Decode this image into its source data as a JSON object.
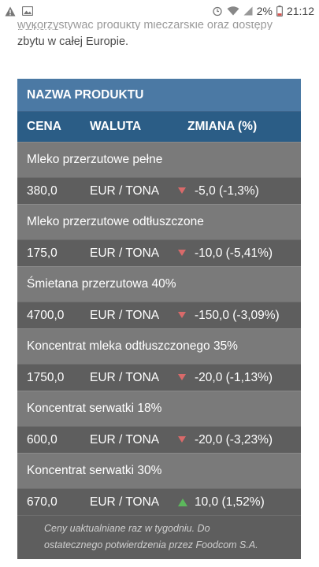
{
  "status_bar": {
    "left_icons": [
      "warning-icon",
      "image-icon"
    ],
    "battery_percent": "2%",
    "time": "21:12"
  },
  "article": {
    "cut_line": "wykorzystywać produkty mleczarskie oraz dostępy rynkowe",
    "line": "zbytu w całej Europie."
  },
  "table": {
    "header_title": "NAZWA PRODUKTU",
    "col_price": "CENA",
    "col_currency": "WALUTA",
    "col_change": "ZMIANA (%)",
    "rows": [
      {
        "name": "Mleko przerzutowe pełne",
        "price": "380,0",
        "currency": "EUR / TONA",
        "trend": "down",
        "change": "-5,0 (-1,3%)"
      },
      {
        "name": "Mleko przerzutowe odtłuszczone",
        "price": "175,0",
        "currency": "EUR / TONA",
        "trend": "down",
        "change": "-10,0 (-5,41%)"
      },
      {
        "name": "Śmietana przerzutowa 40%",
        "price": "4700,0",
        "currency": "EUR / TONA",
        "trend": "down",
        "change": "-150,0 (-3,09%)"
      },
      {
        "name": "Koncentrat mleka odtłuszczonego 35%",
        "price": "1750,0",
        "currency": "EUR / TONA",
        "trend": "down",
        "change": "-20,0 (-1,13%)"
      },
      {
        "name": "Koncentrat serwatki 18%",
        "price": "600,0",
        "currency": "EUR / TONA",
        "trend": "down",
        "change": "-20,0 (-3,23%)"
      },
      {
        "name": "Koncentrat serwatki 30%",
        "price": "670,0",
        "currency": "EUR / TONA",
        "trend": "up",
        "change": "10,0 (1,52%)"
      }
    ],
    "note_line1": "Ceny uaktualniane raz w tygodniu. Do",
    "note_line2": "ostatecznego potwierdzenia przez Foodcom S.A."
  },
  "colors": {
    "header_primary": "#4b79a4",
    "header_secondary": "#2b5d86",
    "name_row": "#7a7a7a",
    "value_row": "#5e5e5e",
    "down": "#d96a6a",
    "up": "#5cb85c"
  }
}
